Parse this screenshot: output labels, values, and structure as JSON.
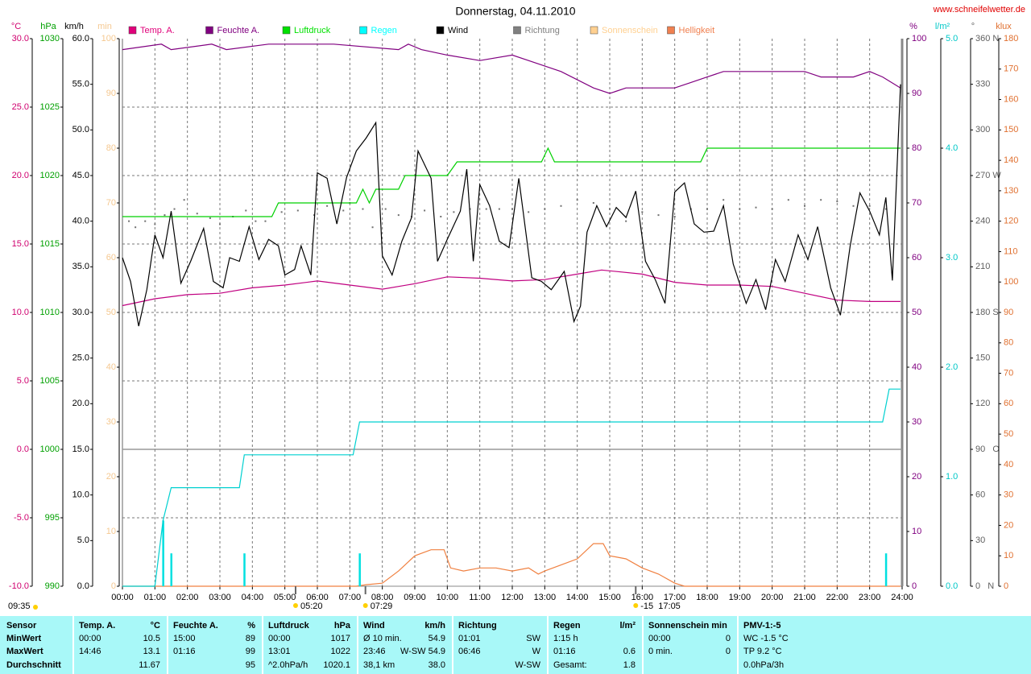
{
  "chart_data": {
    "type": "line",
    "title": "Donnerstag, 04.11.2010",
    "source": "www.schneifelwetter.de",
    "note": "09:35",
    "xlim": [
      0,
      24
    ],
    "xticks": [
      {
        "value": 0,
        "label": "00:00"
      },
      {
        "value": 1,
        "label": "01:00"
      },
      {
        "value": 2,
        "label": "02:00"
      },
      {
        "value": 3,
        "label": "03:00"
      },
      {
        "value": 4,
        "label": "04:00"
      },
      {
        "value": 5,
        "label": "05:00"
      },
      {
        "value": 6,
        "label": "06:00"
      },
      {
        "value": 7,
        "label": "07:00"
      },
      {
        "value": 8,
        "label": "08:00"
      },
      {
        "value": 9,
        "label": "09:00"
      },
      {
        "value": 10,
        "label": "10:00"
      },
      {
        "value": 11,
        "label": "11:00"
      },
      {
        "value": 12,
        "label": "12:00"
      },
      {
        "value": 13,
        "label": "13:00"
      },
      {
        "value": 14,
        "label": "14:00"
      },
      {
        "value": 15,
        "label": "15:00"
      },
      {
        "value": 16,
        "label": "16:00"
      },
      {
        "value": 17,
        "label": "17:00"
      },
      {
        "value": 18,
        "label": "18:00"
      },
      {
        "value": 19,
        "label": "19:00"
      },
      {
        "value": 20,
        "label": "20:00"
      },
      {
        "value": 21,
        "label": "21:00"
      },
      {
        "value": 22,
        "label": "22:00"
      },
      {
        "value": 23,
        "label": "23:00"
      },
      {
        "value": 24,
        "label": "24:00"
      }
    ],
    "grid": true,
    "grid_axis": "temp",
    "axes": [
      {
        "id": "temp",
        "label": "°C",
        "side": "left",
        "color": "#d0006f",
        "lim": [
          -10,
          30
        ],
        "ticks": [
          {
            "value": -10,
            "label": "-10.0"
          },
          {
            "value": -5,
            "label": "-5.0"
          },
          {
            "value": 0,
            "label": "0.0"
          },
          {
            "value": 5,
            "label": "5.0"
          },
          {
            "value": 10,
            "label": "10.0"
          },
          {
            "value": 15,
            "label": "15.0"
          },
          {
            "value": 20,
            "label": "20.0"
          },
          {
            "value": 25,
            "label": "25.0"
          },
          {
            "value": 30,
            "label": "30.0"
          }
        ]
      },
      {
        "id": "hpa",
        "label": "hPa",
        "side": "left",
        "color": "#00a000",
        "lim": [
          990,
          1030
        ],
        "ticks": [
          990,
          995,
          1000,
          1005,
          1010,
          1015,
          1020,
          1025,
          1030
        ]
      },
      {
        "id": "wind",
        "label": "km/h",
        "side": "left",
        "color": "#000000",
        "lim": [
          0,
          60
        ],
        "ticks": [
          {
            "value": 0,
            "label": "0.0"
          },
          {
            "value": 5,
            "label": "5.0"
          },
          {
            "value": 10,
            "label": "10.0"
          },
          {
            "value": 15,
            "label": "15.0"
          },
          {
            "value": 20,
            "label": "20.0"
          },
          {
            "value": 25,
            "label": "25.0"
          },
          {
            "value": 30,
            "label": "30.0"
          },
          {
            "value": 35,
            "label": "35.0"
          },
          {
            "value": 40,
            "label": "40.0"
          },
          {
            "value": 45,
            "label": "45.0"
          },
          {
            "value": 50,
            "label": "50.0"
          },
          {
            "value": 55,
            "label": "55.0"
          },
          {
            "value": 60,
            "label": "60.0"
          }
        ]
      },
      {
        "id": "min",
        "label": "min",
        "side": "left",
        "color": "#f5c890",
        "lim": [
          0,
          100
        ],
        "ticks": [
          0,
          10,
          20,
          30,
          40,
          50,
          60,
          70,
          80,
          90,
          100
        ]
      },
      {
        "id": "pct",
        "label": "%",
        "side": "right",
        "color": "#800080",
        "lim": [
          0,
          100
        ],
        "ticks": [
          0,
          10,
          20,
          30,
          40,
          50,
          60,
          70,
          80,
          90,
          100
        ]
      },
      {
        "id": "rain",
        "label": "l/m²",
        "side": "right",
        "color": "#00c8c8",
        "lim": [
          0,
          5
        ],
        "ticks": [
          {
            "value": 0,
            "label": "0.0"
          },
          {
            "value": 1,
            "label": "1.0"
          },
          {
            "value": 2,
            "label": "2.0"
          },
          {
            "value": 3,
            "label": "3.0"
          },
          {
            "value": 4,
            "label": "4.0"
          },
          {
            "value": 5,
            "label": "5.0"
          }
        ]
      },
      {
        "id": "dir",
        "label": "°",
        "side": "right",
        "color": "#606060",
        "lim": [
          0,
          360
        ],
        "ticks": [
          {
            "value": 0,
            "label": "0   N"
          },
          30,
          60,
          {
            "value": 90,
            "label": "90   O"
          },
          120,
          150,
          {
            "value": 180,
            "label": "180 S"
          },
          210,
          240,
          {
            "value": 270,
            "label": "270 W"
          },
          300,
          330,
          {
            "value": 360,
            "label": "360 N"
          }
        ]
      },
      {
        "id": "klux",
        "label": "klux",
        "side": "right",
        "color": "#e07030",
        "lim": [
          0,
          180
        ],
        "ticks": [
          0,
          10,
          20,
          30,
          40,
          50,
          60,
          70,
          80,
          90,
          100,
          110,
          120,
          130,
          140,
          150,
          160,
          170,
          180
        ]
      }
    ],
    "series": [
      {
        "name": "Temp. A.",
        "legend_color": "#e0007a",
        "color": "#c00080",
        "axis": "temp",
        "type": "line",
        "x": [
          0,
          1,
          2,
          3,
          4,
          5,
          6,
          7,
          8,
          9,
          10,
          11,
          12,
          13,
          14,
          14.75,
          16,
          17,
          18,
          19,
          20,
          21,
          22,
          23,
          23.95
        ],
        "values": [
          10.5,
          11,
          11.3,
          11.4,
          11.8,
          12,
          12.3,
          12,
          11.7,
          12.1,
          12.6,
          12.5,
          12.3,
          12.4,
          12.8,
          13.1,
          12.8,
          12.2,
          12,
          12,
          11.9,
          11.4,
          10.9,
          10.8,
          10.8
        ]
      },
      {
        "name": "Feuchte A.",
        "legend_color": "#800080",
        "color": "#800080",
        "axis": "pct",
        "type": "line",
        "x": [
          0,
          1.2,
          1.5,
          2.75,
          3.2,
          4.5,
          6.5,
          8.5,
          8.8,
          9.2,
          10,
          11,
          12,
          12.5,
          13.5,
          14.5,
          15,
          15.5,
          17,
          17.5,
          18,
          18.5,
          21,
          21.5,
          22.5,
          23,
          23.4,
          23.95
        ],
        "values": [
          98,
          99,
          98,
          99,
          98,
          99,
          99,
          98,
          99,
          98,
          97,
          96,
          97,
          96,
          94,
          91,
          90,
          91,
          91,
          92,
          93,
          94,
          94,
          93,
          93,
          94,
          93,
          91
        ]
      },
      {
        "name": "Luftdruck",
        "legend_color": "#00e000",
        "color": "#00d000",
        "axis": "hpa",
        "type": "line",
        "x": [
          0,
          4.6,
          4.8,
          7.2,
          7.4,
          7.6,
          7.8,
          8.5,
          8.7,
          10,
          10.3,
          12.9,
          13.1,
          13.3,
          17.8,
          18,
          23.95
        ],
        "values": [
          1017,
          1017,
          1018,
          1018,
          1019,
          1018,
          1019,
          1019,
          1020,
          1020,
          1021,
          1021,
          1022,
          1021,
          1021,
          1022,
          1022
        ]
      },
      {
        "name": "Regen",
        "legend_color": "#00ffff",
        "color": "#00d0d0",
        "axis": "rain",
        "type": "line",
        "x": [
          0,
          1,
          1.25,
          1.5,
          3.6,
          3.75,
          7.1,
          7.3,
          23.4,
          23.6,
          23.95
        ],
        "values": [
          0,
          0,
          0.6,
          0.9,
          0.9,
          1.2,
          1.2,
          1.5,
          1.5,
          1.8,
          1.8
        ],
        "bar_x": [
          1.25,
          1.5,
          3.75,
          7.3,
          23.5
        ],
        "bar_values": [
          0.6,
          0.3,
          0.3,
          0.3,
          0.3
        ]
      },
      {
        "name": "Wind",
        "legend_color": "#000000",
        "color": "#000000",
        "axis": "wind",
        "type": "line",
        "x": [
          0,
          0.25,
          0.5,
          0.75,
          1,
          1.25,
          1.5,
          1.8,
          2.1,
          2.5,
          2.8,
          3.1,
          3.3,
          3.6,
          3.9,
          4.2,
          4.5,
          4.8,
          5,
          5.3,
          5.5,
          5.8,
          6,
          6.3,
          6.6,
          6.9,
          7.2,
          7.5,
          7.8,
          8,
          8.3,
          8.6,
          8.9,
          9.1,
          9.5,
          9.7,
          10,
          10.4,
          10.6,
          10.8,
          11,
          11.3,
          11.6,
          11.9,
          12.2,
          12.6,
          12.9,
          13.2,
          13.6,
          13.9,
          14.1,
          14.3,
          14.6,
          14.9,
          15.2,
          15.5,
          15.8,
          16.1,
          16.4,
          16.7,
          17,
          17.3,
          17.6,
          17.9,
          18.2,
          18.5,
          18.8,
          19.2,
          19.5,
          19.8,
          20.1,
          20.4,
          20.8,
          21.1,
          21.4,
          21.8,
          22.1,
          22.4,
          22.7,
          23,
          23.3,
          23.5,
          23.7,
          23.95
        ],
        "values": [
          36,
          33.4,
          28.5,
          32.5,
          38.5,
          36,
          41.1,
          33.2,
          35.6,
          39.2,
          33.4,
          32.7,
          36,
          35.6,
          39.4,
          35.8,
          38,
          37.3,
          34.1,
          34.7,
          37.3,
          34.1,
          45.3,
          44.7,
          39.7,
          44.8,
          47.7,
          49.1,
          50.8,
          36.2,
          34.1,
          37.8,
          40.4,
          47.7,
          44.7,
          35.6,
          38,
          41.1,
          45.7,
          35.6,
          44,
          41.7,
          37.8,
          37.1,
          44.7,
          33.8,
          33.4,
          32.5,
          34.5,
          29,
          30.7,
          38.8,
          41.7,
          39.4,
          41.5,
          40.4,
          43.3,
          35.6,
          33.6,
          31,
          43.2,
          44.2,
          39.7,
          38.8,
          38.9,
          41.7,
          35.3,
          31,
          33.6,
          30.3,
          35.8,
          33.4,
          38.5,
          35.8,
          39.4,
          32.7,
          29.7,
          37.3,
          43.1,
          41.1,
          38.5,
          42.6,
          33.5,
          55
        ]
      },
      {
        "name": "Richtung",
        "legend_color": "#808080",
        "color": "#707070",
        "axis": "dir",
        "type": "scatter",
        "x": [
          0.2,
          0.4,
          0.7,
          1.0,
          1.3,
          1.6,
          1.9,
          2.3,
          2.7,
          3.0,
          3.4,
          3.8,
          4.1,
          4.4,
          4.9,
          5.4,
          5.9,
          6.3,
          6.8,
          7.0,
          7.4,
          7.7,
          8.1,
          8.5,
          8.9,
          9.3,
          9.8,
          10.2,
          10.7,
          11.2,
          11.6,
          12,
          12.5,
          13,
          13.5,
          14,
          14.5,
          15,
          15.5,
          16,
          16.5,
          17,
          17.5,
          18,
          18.5,
          19,
          19.5,
          20,
          20.5,
          21,
          21.5,
          22,
          22.5,
          23,
          23.5
        ],
        "values": [
          240,
          236,
          240,
          238,
          244,
          248,
          254,
          245,
          242,
          238,
          243,
          247,
          240,
          240,
          246,
          247,
          244,
          250,
          247,
          252,
          248,
          236,
          248,
          244,
          243,
          247,
          243,
          246,
          248,
          248,
          248,
          248,
          246,
          248,
          250,
          254,
          252,
          248,
          240,
          246,
          244,
          243,
          248,
          248,
          254,
          248,
          249,
          248,
          254,
          250,
          254,
          253,
          250,
          250,
          248
        ]
      },
      {
        "name": "Sonnenschein",
        "legend_color": "#ffd090",
        "color": "#f5c890",
        "axis": "min",
        "type": "none"
      },
      {
        "name": "Helligkeit",
        "legend_color": "#f08050",
        "color": "#f08040",
        "axis": "klux",
        "type": "line",
        "x": [
          0,
          7.2,
          7.5,
          8,
          8.5,
          9,
          9.5,
          9.9,
          10.1,
          10.5,
          11,
          11.5,
          12,
          12.5,
          12.8,
          13,
          13.5,
          14,
          14.5,
          14.8,
          15,
          15.5,
          16,
          16.5,
          17,
          17.3,
          23.95
        ],
        "values": [
          0,
          0,
          0.5,
          1,
          5,
          10,
          12,
          12,
          6,
          5,
          6,
          6,
          5,
          6,
          4,
          5,
          7,
          9,
          14,
          14,
          10,
          9,
          6,
          4,
          1,
          0,
          0
        ]
      }
    ],
    "annotations": [
      {
        "x": 5.33,
        "label": "05:20"
      },
      {
        "x": 7.48,
        "label": "07:29"
      },
      {
        "x": 15.8,
        "label": "-15  17:05"
      }
    ]
  },
  "table": {
    "first_column": {
      "header": "Sensor",
      "rows": [
        "MinWert",
        "MaxWert",
        "Durchschnitt"
      ]
    },
    "columns": [
      {
        "header": "Temp. A.",
        "unit": "°C",
        "rows": [
          {
            "left": "00:00",
            "right": "10.5"
          },
          {
            "left": "14:46",
            "right": "13.1"
          },
          {
            "right": "11.67"
          }
        ]
      },
      {
        "header": "Feuchte A.",
        "unit": "%",
        "rows": [
          {
            "left": "15:00",
            "right": "89"
          },
          {
            "left": "01:16",
            "right": "99"
          },
          {
            "right": "95"
          }
        ]
      },
      {
        "header": "Luftdruck",
        "unit": "hPa",
        "rows": [
          {
            "left": "00:00",
            "right": "1017"
          },
          {
            "left": "13:01",
            "right": "1022"
          },
          {
            "left": "^2.0hPa/h",
            "right": "1020.1"
          }
        ]
      },
      {
        "header": "Wind",
        "unit": "km/h",
        "rows": [
          {
            "left": "Ø 10 min.",
            "right": "54.9"
          },
          {
            "left": "23:46",
            "right": "W-SW 54.9"
          },
          {
            "left": "38,1 km",
            "right": "38.0"
          }
        ]
      },
      {
        "header": "Richtung",
        "rows": [
          {
            "left": "01:01",
            "right": "SW"
          },
          {
            "left": "06:46",
            "right": "W"
          },
          {
            "right": "W-SW"
          }
        ]
      },
      {
        "header": "Regen",
        "unit": "l/m²",
        "rows": [
          {
            "left": "1:15 h"
          },
          {
            "left": "01:16",
            "right": "0.6"
          },
          {
            "left": "Gesamt:",
            "right": "1.8"
          }
        ]
      },
      {
        "header": "Sonnenschein min",
        "rows": [
          {
            "left": "00:00",
            "right": "0"
          },
          {
            "left": "0 min.",
            "right": "0"
          }
        ]
      },
      {
        "header": "PMV-1:-5",
        "rows": [
          {
            "left": "WC -1.5 °C"
          },
          {
            "left": "TP 9.2 °C"
          },
          {
            "left": "0.0hPa/3h"
          }
        ]
      }
    ]
  }
}
